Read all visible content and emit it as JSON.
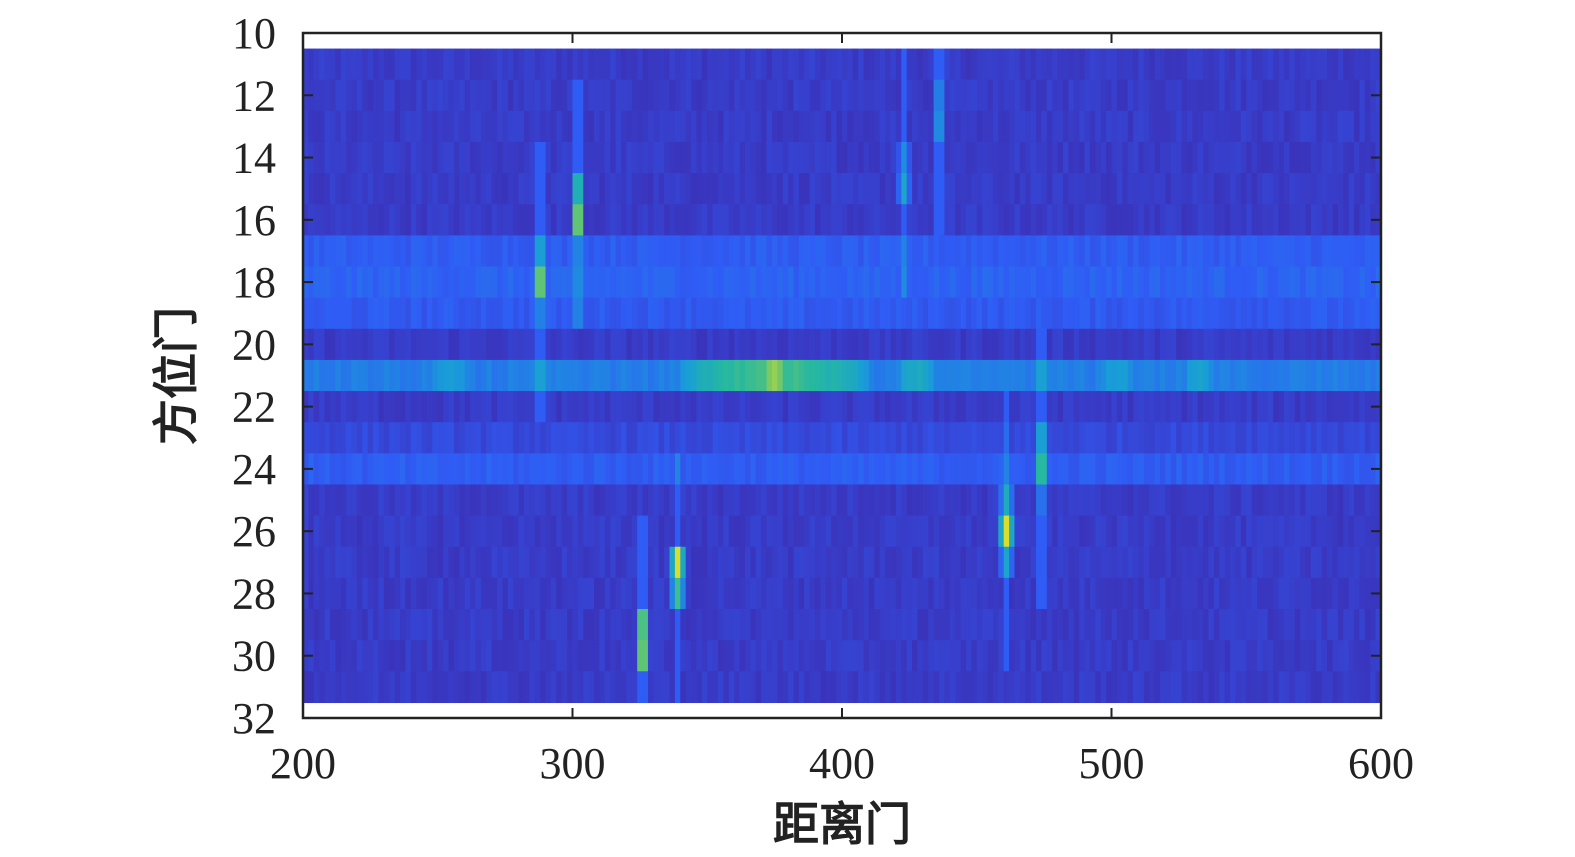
{
  "chart_data": {
    "type": "heatmap",
    "xlabel": "距离门",
    "ylabel": "方位门",
    "xlim": [
      200,
      600
    ],
    "ylim": [
      32,
      10
    ],
    "y_axis_inverted": true,
    "x_ticks": [
      200,
      300,
      400,
      500,
      600
    ],
    "y_ticks": [
      10,
      12,
      14,
      16,
      18,
      20,
      22,
      24,
      26,
      28,
      30,
      32
    ],
    "rows": [
      11,
      12,
      13,
      14,
      15,
      16,
      17,
      18,
      19,
      20,
      21,
      22,
      23,
      24,
      25,
      26,
      27,
      28,
      29,
      30,
      31
    ],
    "colormap": [
      "#3e26a8",
      "#2f5cf5",
      "#199dd8",
      "#26b8a0",
      "#8dcd57",
      "#f5e21d"
    ],
    "background_level": 0.08,
    "row_baselines": {
      "17": 0.2,
      "18": 0.22,
      "19": 0.19,
      "21": 0.3,
      "23": 0.13,
      "24": 0.2
    },
    "horizontal_bands": [
      {
        "row": 21,
        "from": 200,
        "to": 600,
        "level": 0.3
      },
      {
        "row": 21,
        "from": 340,
        "to": 410,
        "level": 0.65
      },
      {
        "row": 21,
        "from": 370,
        "to": 380,
        "level": 0.8
      },
      {
        "row": 21,
        "from": 420,
        "to": 435,
        "level": 0.48
      },
      {
        "row": 21,
        "from": 245,
        "to": 265,
        "level": 0.4
      },
      {
        "row": 21,
        "from": 495,
        "to": 510,
        "level": 0.42
      },
      {
        "row": 21,
        "from": 525,
        "to": 540,
        "level": 0.42
      }
    ],
    "peaks": [
      {
        "x": 288,
        "row": 17,
        "value": 0.55
      },
      {
        "x": 288,
        "row": 18,
        "value": 0.95
      },
      {
        "x": 288,
        "row": 19,
        "value": 0.4
      },
      {
        "x": 302,
        "row": 15,
        "value": 0.7
      },
      {
        "x": 302,
        "row": 16,
        "value": 0.95
      },
      {
        "x": 326,
        "row": 29,
        "value": 0.9
      },
      {
        "x": 326,
        "row": 30,
        "value": 0.95
      },
      {
        "x": 339,
        "row": 27,
        "value": 0.95
      },
      {
        "x": 339,
        "row": 28,
        "value": 0.65
      },
      {
        "x": 423,
        "row": 14,
        "value": 0.35
      },
      {
        "x": 423,
        "row": 15,
        "value": 0.45
      },
      {
        "x": 436,
        "row": 12,
        "value": 0.4
      },
      {
        "x": 436,
        "row": 13,
        "value": 0.45
      },
      {
        "x": 461,
        "row": 25,
        "value": 0.5
      },
      {
        "x": 461,
        "row": 26,
        "value": 0.95
      },
      {
        "x": 461,
        "row": 27,
        "value": 0.45
      },
      {
        "x": 474,
        "row": 23,
        "value": 0.55
      },
      {
        "x": 474,
        "row": 24,
        "value": 0.8
      },
      {
        "x": 474,
        "row": 25,
        "value": 0.35
      }
    ]
  }
}
